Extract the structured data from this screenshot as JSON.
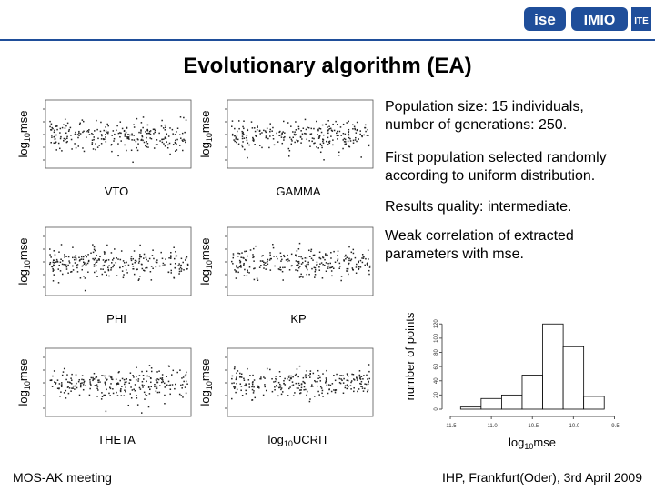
{
  "header": {
    "title": "Evolutionary algorithm (EA)",
    "logos": [
      "ise",
      "IMIO",
      "ITE"
    ]
  },
  "notes": [
    [
      "Population size: 15 individuals,",
      "number of generations: 250."
    ],
    [
      "First population selected randomly",
      "according to uniform distribution."
    ],
    [
      "Results quality: intermediate."
    ],
    [
      "Weak correlation of extracted",
      "parameters with mse."
    ]
  ],
  "y_label": {
    "base": "log",
    "sub": "10",
    "rest": "mse"
  },
  "panels": [
    {
      "x_label": "VTO"
    },
    {
      "x_label": "GAMMA"
    },
    {
      "x_label": "PHI"
    },
    {
      "x_label": "KP"
    },
    {
      "x_label": "THETA"
    },
    {
      "x_label": {
        "base": "log",
        "sub": "10",
        "rest": "UCRIT"
      }
    }
  ],
  "chart_data": {
    "type": "histogram",
    "x_label": {
      "base": "log",
      "sub": "10",
      "rest": "mse"
    },
    "y_label": "number of points",
    "bins": [
      -11.375,
      -11.125,
      -10.875,
      -10.625,
      -10.375,
      -10.125,
      -9.875,
      -9.625
    ],
    "counts": [
      3,
      15,
      20,
      48,
      120,
      88,
      18
    ],
    "color": "#ffffff",
    "xlim": [
      -11.6,
      -9.45
    ],
    "ylim": [
      0,
      128
    ],
    "xticks": [
      {
        "value": -11.5,
        "label": "-11.5"
      },
      {
        "value": -11.0,
        "label": "-11.0"
      },
      {
        "value": -10.5,
        "label": "-10.5"
      },
      {
        "value": -10.0,
        "label": "-10.0"
      },
      {
        "value": -9.5,
        "label": "-9.5"
      }
    ],
    "yticks": [
      0,
      20,
      40,
      60,
      80,
      100,
      120
    ]
  },
  "footer": {
    "left": "MOS-AK meeting",
    "right": "IHP, Frankfurt(Oder), 3rd April 2009"
  }
}
